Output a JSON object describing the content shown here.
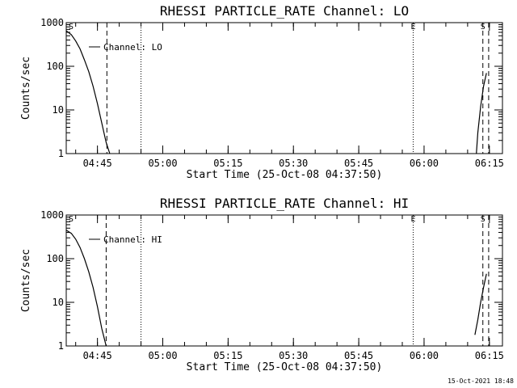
{
  "chart_data": [
    {
      "type": "line",
      "title": "RHESSI PARTICLE_RATE Channel: LO",
      "xlabel": "Start Time (25-Oct-08 04:37:50)",
      "ylabel": "Counts/sec",
      "yscale": "log",
      "ylim": [
        1,
        1000
      ],
      "xlim": [
        "04:37:50",
        "06:18:00"
      ],
      "x_ticks": [
        "04:45",
        "05:00",
        "05:15",
        "05:30",
        "05:45",
        "06:00",
        "06:15"
      ],
      "y_ticks": [
        "1",
        "10",
        "100",
        "1000"
      ],
      "grid": false,
      "legend": {
        "location": "top-left",
        "entries": [
          "Channel: LO"
        ]
      },
      "series": [
        {
          "name": "Channel: LO",
          "segments": [
            {
              "x": [
                "04:37:50",
                "04:39:00",
                "04:40:00",
                "04:41:00",
                "04:42:00",
                "04:43:00",
                "04:44:00",
                "04:45:00",
                "04:46:00",
                "04:47:00",
                "04:47:50"
              ],
              "y": [
                650,
                530,
                380,
                250,
                140,
                75,
                35,
                14,
                5,
                1.8,
                1
              ]
            },
            {
              "x": [
                "06:12:00",
                "06:12:20",
                "06:13:00",
                "06:13:40",
                "06:14:20"
              ],
              "y": [
                1,
                3,
                12,
                35,
                70
              ]
            }
          ]
        }
      ],
      "markers": [
        {
          "label": "S",
          "time": "04:37:50",
          "style": "none"
        },
        {
          "time": "04:47:10",
          "style": "dashed"
        },
        {
          "time": "04:55:00",
          "style": "dotted"
        },
        {
          "label": "E",
          "time": "05:57:30",
          "style": "dotted"
        },
        {
          "label": "S",
          "time": "06:13:30",
          "style": "dashed"
        },
        {
          "time": "06:14:50",
          "style": "dashed"
        }
      ]
    },
    {
      "type": "line",
      "title": "RHESSI PARTICLE_RATE Channel: HI",
      "xlabel": "Start Time (25-Oct-08 04:37:50)",
      "ylabel": "Counts/sec",
      "yscale": "log",
      "ylim": [
        1,
        1000
      ],
      "xlim": [
        "04:37:50",
        "06:18:00"
      ],
      "x_ticks": [
        "04:45",
        "05:00",
        "05:15",
        "05:30",
        "05:45",
        "06:00",
        "06:15"
      ],
      "y_ticks": [
        "1",
        "10",
        "100",
        "1000"
      ],
      "grid": false,
      "legend": {
        "location": "top-left",
        "entries": [
          "Channel: HI"
        ]
      },
      "series": [
        {
          "name": "Channel: HI",
          "segments": [
            {
              "x": [
                "04:37:50",
                "04:39:00",
                "04:40:00",
                "04:41:00",
                "04:42:00",
                "04:43:00",
                "04:44:00",
                "04:45:00",
                "04:46:00",
                "04:47:00"
              ],
              "y": [
                450,
                380,
                280,
                180,
                100,
                50,
                22,
                8,
                2.5,
                1
              ]
            },
            {
              "x": [
                "06:11:40",
                "06:12:20",
                "06:13:00",
                "06:13:40",
                "06:14:20"
              ],
              "y": [
                1.8,
                4,
                10,
                22,
                45
              ]
            }
          ]
        }
      ],
      "markers": [
        {
          "label": "S",
          "time": "04:37:50",
          "style": "none"
        },
        {
          "time": "04:47:00",
          "style": "dashed"
        },
        {
          "time": "04:55:00",
          "style": "dotted"
        },
        {
          "label": "E",
          "time": "05:57:30",
          "style": "dotted"
        },
        {
          "label": "S",
          "time": "06:13:30",
          "style": "dashed"
        },
        {
          "time": "06:14:50",
          "style": "dashed"
        }
      ]
    }
  ],
  "footer": {
    "timestamp": "15-Oct-2021 18:48"
  }
}
